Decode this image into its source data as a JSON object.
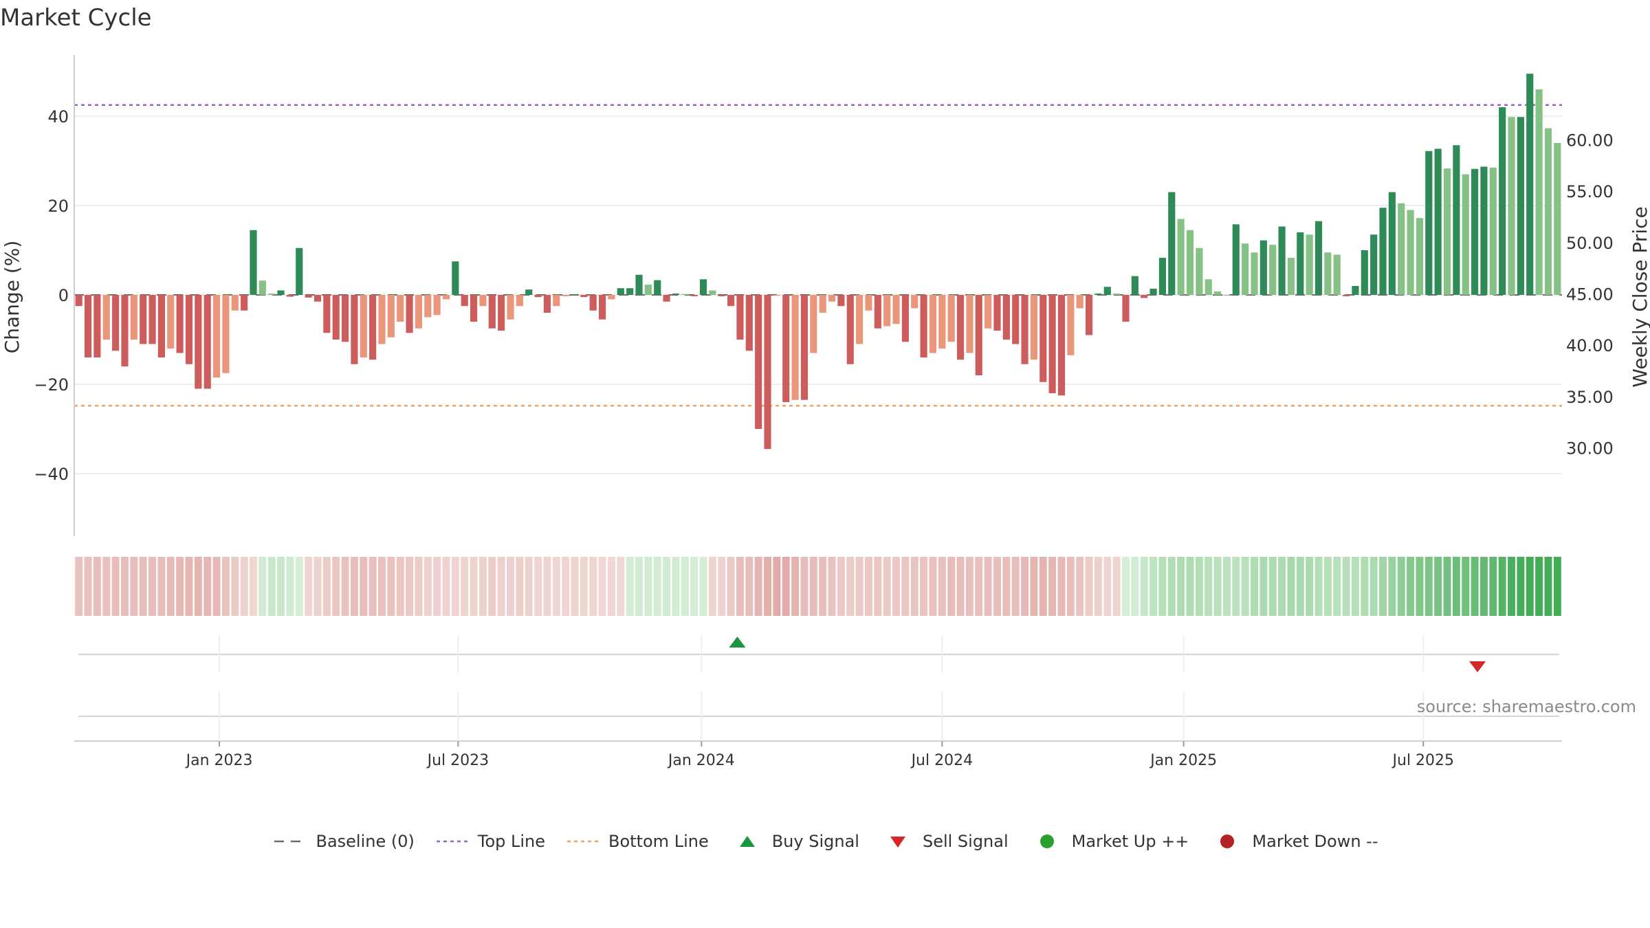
{
  "chart_data": {
    "type": "bar",
    "title": "Market Cycle",
    "ylabel": "Change (%)",
    "y2label": "Weekly Close Price",
    "ylim": [
      -54,
      54
    ],
    "y2lim": [
      21.4,
      68.4
    ],
    "yticks": [
      -40,
      -20,
      0,
      20,
      40
    ],
    "y2ticks": [
      "30.00",
      "35.00",
      "40.00",
      "45.00",
      "50.00",
      "55.00",
      "60.00"
    ],
    "xticks": [
      "Jan 2023",
      "Jul 2023",
      "Jan 2024",
      "Jul 2024",
      "Jan 2025",
      "Jul 2025"
    ],
    "xtick_weeks": [
      15.3,
      41.3,
      67.8,
      94.0,
      120.3,
      146.4
    ],
    "top_line": 42.5,
    "bottom_line": -24.8,
    "grid": true,
    "legend_position": "bottom-center",
    "values": [
      -2.5,
      -14,
      -14,
      -10,
      -12.5,
      -16,
      -10,
      -11,
      -11,
      -14,
      -12,
      -13,
      -15.5,
      -21,
      -21,
      -18.5,
      -17.5,
      -3.5,
      -3.5,
      14.5,
      3.2,
      0.3,
      1,
      -0.4,
      10.5,
      -0.6,
      -1.5,
      -8.5,
      -10,
      -10.5,
      -15.5,
      -14,
      -14.5,
      -11,
      -9.5,
      -6,
      -8.5,
      -7.5,
      -5,
      -4.5,
      -1,
      7.5,
      -2.5,
      -6,
      -2.5,
      -7.5,
      -8,
      -5.5,
      -2.5,
      1.2,
      -0.5,
      -4,
      -2.5,
      -0.3,
      0,
      -0.5,
      -3.5,
      -5.5,
      -1,
      1.5,
      1.5,
      4.5,
      2.3,
      3.3,
      -1.5,
      0.3,
      0.2,
      -0.3,
      3.5,
      1,
      -0.3,
      -2.5,
      -10,
      -12.5,
      -30,
      -34.5,
      -0.2,
      -24,
      -23.5,
      -23.5,
      -13,
      -4,
      -1.5,
      -2.5,
      -15.5,
      -11,
      -3.5,
      -7.5,
      -7,
      -6.5,
      -10.5,
      -3,
      -14,
      -13,
      -12,
      -10.5,
      -14.5,
      -13,
      -18,
      -7.5,
      -8,
      -10,
      -11,
      -15.5,
      -14.5,
      -19.5,
      -22,
      -22.5,
      -13.5,
      -3,
      -9,
      0.3,
      1.8,
      0.3,
      -6,
      4.2,
      -0.7,
      1.4,
      8.3,
      23,
      17,
      14.5,
      10.5,
      3.5,
      0.8,
      0,
      15.8,
      11.5,
      9.5,
      12.2,
      11.2,
      15.3,
      8.3,
      14,
      13.5,
      16.5,
      9.5,
      9,
      -0.3,
      2,
      10,
      13.5,
      19.5,
      23,
      20.5,
      19,
      17.2,
      32.2,
      32.7,
      28.3,
      33.5,
      27,
      28.2,
      28.7,
      28.5,
      42,
      39.8,
      39.8,
      49.5,
      46,
      37.3,
      34
    ],
    "heat_strip": "weekly gradient from red (down) to green (up)",
    "signals": [
      {
        "type": "Buy Signal",
        "week": 71.7
      },
      {
        "type": "Sell Signal",
        "week": 152.3
      }
    ],
    "series": [
      {
        "name": "Baseline (0)",
        "style": "dashed",
        "color": "#6b6b6b"
      },
      {
        "name": "Top Line",
        "style": "dotted",
        "color": "#9467bd"
      },
      {
        "name": "Bottom Line",
        "style": "dotted",
        "color": "#f0a060"
      },
      {
        "name": "Buy Signal",
        "marker": "triangle-up",
        "color": "#1a9641"
      },
      {
        "name": "Sell Signal",
        "marker": "triangle-down",
        "color": "#d62728"
      },
      {
        "name": "Market Up ++",
        "marker": "circle",
        "color": "#2ca02c"
      },
      {
        "name": "Market Down --",
        "marker": "circle",
        "color": "#b22222"
      }
    ],
    "colors": {
      "up_strong": "#2e8b57",
      "up_weak": "#86c286",
      "down_strong": "#cd5c5c",
      "down_weak": "#e9967a"
    }
  },
  "source_note": "source: sharemaestro.com"
}
